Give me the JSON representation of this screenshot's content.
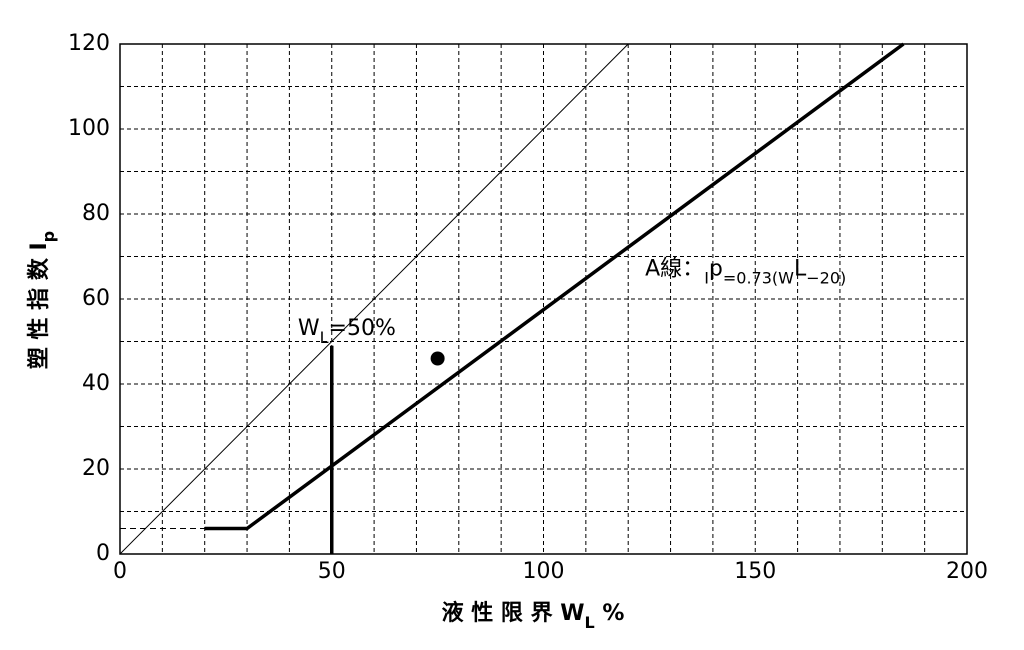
{
  "chart_data": {
    "type": "line",
    "xlim": [
      0,
      200
    ],
    "ylim": [
      0,
      120
    ],
    "xticks": [
      0,
      50,
      100,
      150,
      200
    ],
    "yticks": [
      0,
      20,
      40,
      60,
      80,
      100,
      120
    ],
    "xminor": [
      10,
      20,
      30,
      40,
      60,
      70,
      80,
      90,
      110,
      120,
      130,
      140,
      160,
      170,
      180,
      190
    ],
    "yminor": [
      10,
      30,
      50,
      70,
      90,
      110
    ],
    "grid": true,
    "x_label": [
      "液 性 限 界 W",
      "L",
      " %"
    ],
    "y_label": [
      "塑 性 指 数 I",
      "p"
    ],
    "annotations": [
      {
        "text": [
          "A線：",
          "I",
          "p",
          "=0.73(W",
          "L",
          "−20)"
        ],
        "x": 124,
        "y": 67
      },
      {
        "text": [
          "W",
          "L",
          "=50%"
        ],
        "x": 42,
        "y": 53
      }
    ],
    "lines": [
      {
        "x": [
          0,
          120
        ],
        "values": [
          0,
          120
        ],
        "width": 1,
        "style": "solid",
        "color": "#000000"
      },
      {
        "x": [
          20,
          30,
          185
        ],
        "values": [
          6,
          6,
          120
        ],
        "width": 3.5,
        "style": "solid",
        "color": "#000000"
      },
      {
        "x": [
          50,
          50
        ],
        "values": [
          0,
          49
        ],
        "width": 3.5,
        "style": "solid",
        "color": "#000000"
      },
      {
        "x": [
          0,
          20
        ],
        "values": [
          6,
          6
        ],
        "width": 1,
        "style": "dashed",
        "color": "#000000"
      }
    ],
    "points": {
      "x": [
        75
      ],
      "values": [
        46
      ],
      "color": "#000000"
    }
  }
}
